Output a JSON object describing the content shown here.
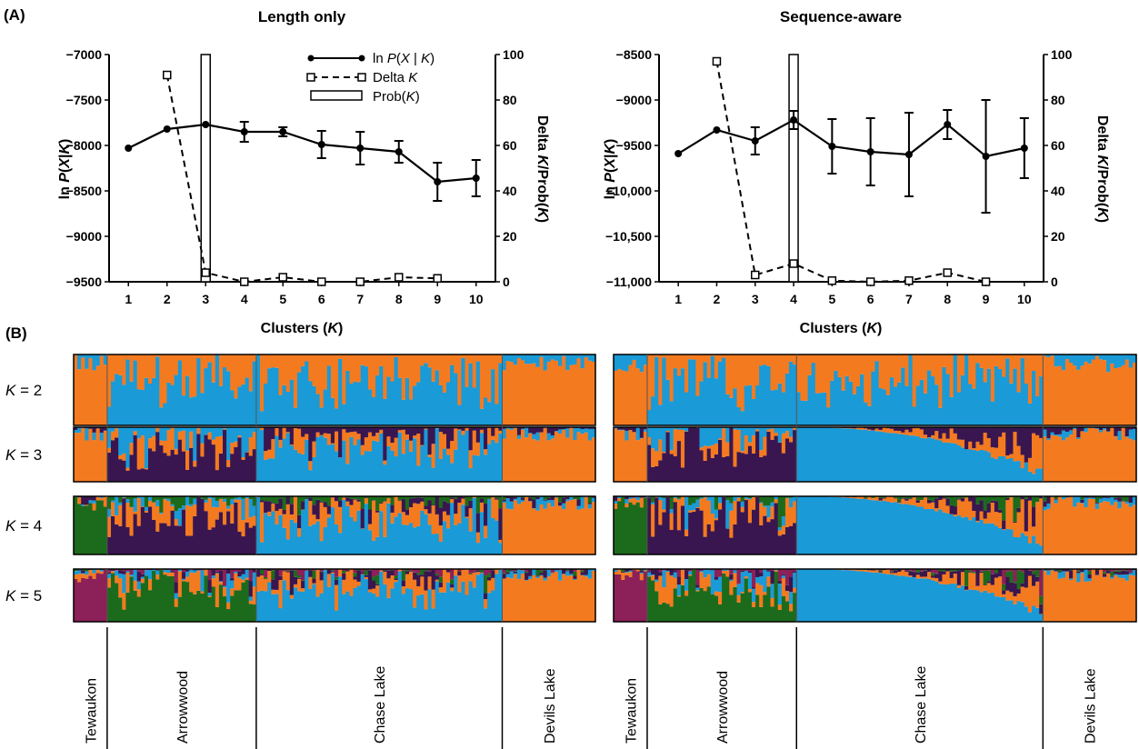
{
  "panel_labels": {
    "a": "(A)",
    "b": "(B)"
  },
  "colors": {
    "orange": "#f47a20",
    "blue": "#1a9ad6",
    "purple": "#3a1650",
    "green": "#1c6b1c",
    "magenta": "#8c2058"
  },
  "chart_data": [
    {
      "type": "line",
      "title": "Length only",
      "xlabel": "Clusters (K)",
      "ylabel_left": "ln P(X|K)",
      "ylabel_right": "Delta K/Prob(K)",
      "x": [
        1,
        2,
        3,
        4,
        5,
        6,
        7,
        8,
        9,
        10
      ],
      "ylim_left": [
        -9500,
        -7000
      ],
      "ylim_right": [
        0,
        100
      ],
      "yticks_left": [
        "−7000",
        "−7500",
        "−8000",
        "−8500",
        "−9000",
        "−9500"
      ],
      "yticks_right": [
        "100",
        "80",
        "60",
        "40",
        "20",
        "0"
      ],
      "legend": [
        {
          "name": "ln P(X|K)",
          "style": "solid-filled-circle"
        },
        {
          "name": "Delta K",
          "style": "dashed-open-square"
        },
        {
          "name": "Prob(K)",
          "style": "open-bar"
        }
      ],
      "series": [
        {
          "name": "ln P(X|K)",
          "axis": "left",
          "values": [
            -8030,
            -7820,
            -7770,
            -7850,
            -7850,
            -7990,
            -8030,
            -8070,
            -8400,
            -8360
          ],
          "errors": [
            0,
            0,
            0,
            110,
            50,
            150,
            180,
            120,
            210,
            200
          ]
        },
        {
          "name": "Delta K",
          "axis": "right",
          "x": [
            2,
            3,
            4,
            5,
            6,
            7,
            8,
            9
          ],
          "values": [
            91,
            4,
            0,
            2,
            0,
            0,
            2,
            1.5
          ]
        },
        {
          "name": "Prob(K)",
          "axis": "right",
          "x": [
            3
          ],
          "values": [
            100
          ]
        }
      ]
    },
    {
      "type": "line",
      "title": "Sequence-aware",
      "xlabel": "Clusters (K)",
      "ylabel_left": "ln P(X|K)",
      "ylabel_right": "Delta K/Prob(K)",
      "x": [
        1,
        2,
        3,
        4,
        5,
        6,
        7,
        8,
        9,
        10
      ],
      "ylim_left": [
        -11000,
        -8500
      ],
      "ylim_right": [
        0,
        100
      ],
      "yticks_left": [
        "−8500",
        "−9000",
        "−9500",
        "−10,000",
        "−10,500",
        "−11,000"
      ],
      "yticks_right": [
        "100",
        "80",
        "60",
        "40",
        "20",
        "0"
      ],
      "series": [
        {
          "name": "ln P(X|K)",
          "axis": "left",
          "values": [
            -9590,
            -9330,
            -9450,
            -9220,
            -9510,
            -9570,
            -9600,
            -9270,
            -9620,
            -9530
          ],
          "errors": [
            0,
            0,
            150,
            100,
            300,
            370,
            460,
            160,
            620,
            330
          ]
        },
        {
          "name": "Delta K",
          "axis": "right",
          "x": [
            2,
            3,
            4,
            5,
            6,
            7,
            8,
            9
          ],
          "values": [
            97,
            3,
            8,
            0.5,
            0,
            0.5,
            4,
            0
          ]
        },
        {
          "name": "Prob(K)",
          "axis": "right",
          "x": [
            4
          ],
          "values": [
            100
          ]
        }
      ]
    }
  ],
  "structure": {
    "k_labels": [
      "K = 2",
      "K = 3",
      "K = 4",
      "K = 5"
    ],
    "populations": [
      "Tewaukon",
      "Arrowwood",
      "Chase Lake",
      "Devils Lake"
    ]
  }
}
